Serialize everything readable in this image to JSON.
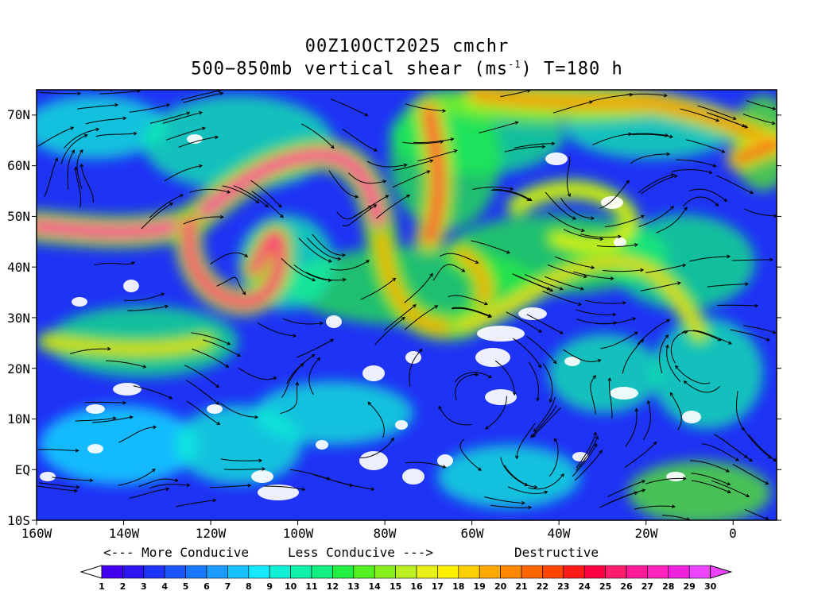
{
  "title": {
    "line1": "00Z10OCT2025 cmchr",
    "line2_prefix": "500−850mb vertical shear (ms",
    "line2_superscript": "-1",
    "line2_suffix": ") T=180 h"
  },
  "map": {
    "projection": "cylindrical equidistant",
    "lon_range": [
      -160,
      10
    ],
    "lat_range": [
      -10,
      75
    ],
    "field": "vertical wind shear magnitude with streamlines",
    "lat_labels": [
      "70N",
      "60N",
      "50N",
      "40N",
      "30N",
      "20N",
      "10N",
      "EQ",
      "10S"
    ],
    "lat_values": [
      70,
      60,
      50,
      40,
      30,
      20,
      10,
      0,
      -10
    ],
    "lon_labels": [
      "160W",
      "140W",
      "120W",
      "100W",
      "80W",
      "60W",
      "40W",
      "20W",
      "0"
    ],
    "lon_values": [
      -160,
      -140,
      -120,
      -100,
      -80,
      -60,
      -40,
      -20,
      0
    ]
  },
  "legend": {
    "more_conducive": "<--- More Conducive",
    "less_conducive": "Less Conducive --->",
    "destructive": "Destructive",
    "colorbar_labels": [
      "1",
      "2",
      "3",
      "4",
      "5",
      "6",
      "7",
      "8",
      "9",
      "10",
      "11",
      "12",
      "13",
      "14",
      "15",
      "16",
      "17",
      "18",
      "19",
      "20",
      "21",
      "22",
      "23",
      "24",
      "25",
      "26",
      "27",
      "28",
      "29",
      "30"
    ],
    "colors": [
      "#ffffff",
      "#4400ee",
      "#2f16f0",
      "#1f33f5",
      "#1a55fa",
      "#1a78ff",
      "#1d9bff",
      "#18c0ff",
      "#15e8ff",
      "#12f0d5",
      "#10f0aa",
      "#12ee80",
      "#22ee44",
      "#55f022",
      "#88f022",
      "#b8f022",
      "#e8f018",
      "#fff000",
      "#ffd000",
      "#ffaa00",
      "#ff8800",
      "#ff6600",
      "#ff4400",
      "#ff1a1a",
      "#ff0044",
      "#ff1d70",
      "#ff1a99",
      "#ff22bb",
      "#ee22dd",
      "#ee44ff"
    ]
  }
}
